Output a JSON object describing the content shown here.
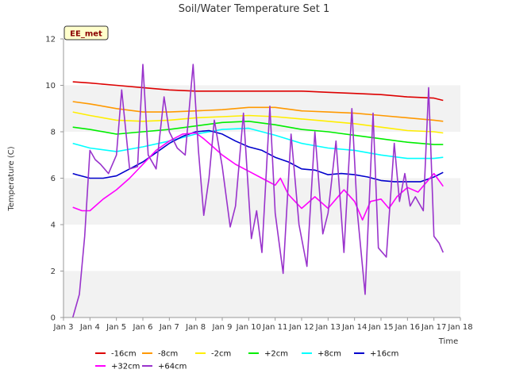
{
  "chart_data": {
    "type": "line",
    "title": "Soil/Water Temperature Set 1",
    "xlabel": "Time",
    "ylabel": "Temperature (C)",
    "station_badge": "EE_met",
    "x_ticks": [
      "Jan 3",
      "Jan 4",
      "Jan 5",
      "Jan 6",
      "Jan 7",
      "Jan 8",
      "Jan 9",
      "Jan 10",
      "Jan 11",
      "Jan 12",
      "Jan 13",
      "Jan 14",
      "Jan 15",
      "Jan 16",
      "Jan 17",
      "Jan 18"
    ],
    "y_ticks": [
      0,
      2,
      4,
      6,
      8,
      10,
      12
    ],
    "xlim": [
      "Jan 3",
      "Jan 18"
    ],
    "ylim": [
      0,
      12
    ],
    "grid": "horizontal alternating bands",
    "legend_position": "bottom",
    "series": [
      {
        "name": "-16cm",
        "color": "#dd0000",
        "x": [
          3.35,
          4,
          5,
          6,
          7,
          8,
          9,
          10,
          11,
          12,
          13,
          14,
          15,
          16,
          17.0,
          17.35
        ],
        "y": [
          10.15,
          10.1,
          10.0,
          9.9,
          9.8,
          9.75,
          9.75,
          9.75,
          9.75,
          9.75,
          9.7,
          9.65,
          9.6,
          9.5,
          9.45,
          9.35
        ]
      },
      {
        "name": "-8cm",
        "color": "#ff9900",
        "x": [
          3.35,
          4,
          5,
          6,
          7,
          8,
          9,
          10,
          11,
          12,
          13,
          14,
          15,
          16,
          17.0,
          17.35
        ],
        "y": [
          9.3,
          9.2,
          9.0,
          8.85,
          8.85,
          8.9,
          8.95,
          9.05,
          9.05,
          8.9,
          8.85,
          8.8,
          8.7,
          8.6,
          8.5,
          8.45
        ]
      },
      {
        "name": "-2cm",
        "color": "#ffee00",
        "x": [
          3.35,
          4,
          5,
          6,
          7,
          8,
          9,
          10,
          11,
          12,
          13,
          14,
          15,
          16,
          17.0,
          17.35
        ],
        "y": [
          8.85,
          8.7,
          8.5,
          8.45,
          8.5,
          8.6,
          8.65,
          8.7,
          8.65,
          8.55,
          8.45,
          8.35,
          8.2,
          8.05,
          8.0,
          7.95
        ]
      },
      {
        "name": "+2cm",
        "color": "#00ee00",
        "x": [
          3.35,
          4,
          5,
          6,
          7,
          8,
          9,
          10,
          11,
          12,
          13,
          14,
          15,
          16,
          17.0,
          17.35
        ],
        "y": [
          8.2,
          8.1,
          7.9,
          8.0,
          8.1,
          8.25,
          8.4,
          8.45,
          8.3,
          8.1,
          8.0,
          7.85,
          7.7,
          7.55,
          7.45,
          7.45
        ]
      },
      {
        "name": "+8cm",
        "color": "#00ffff",
        "x": [
          3.35,
          4,
          5,
          6,
          7,
          8,
          9,
          10,
          11,
          12,
          13,
          14,
          15,
          16,
          17.0,
          17.35
        ],
        "y": [
          7.5,
          7.3,
          7.15,
          7.35,
          7.6,
          7.9,
          8.1,
          8.15,
          7.85,
          7.5,
          7.3,
          7.2,
          7.0,
          6.85,
          6.85,
          6.9
        ]
      },
      {
        "name": "+16cm",
        "color": "#0000cc",
        "x": [
          3.35,
          3.5,
          4,
          4.5,
          5,
          5.5,
          6,
          6.5,
          7,
          7.5,
          8,
          8.5,
          9,
          9.5,
          10,
          10.5,
          11,
          11.5,
          12,
          12.5,
          13,
          13.5,
          14,
          14.5,
          15,
          15.5,
          16,
          16.5,
          17.0,
          17.35
        ],
        "y": [
          6.2,
          6.15,
          6.0,
          6.0,
          6.1,
          6.4,
          6.7,
          7.1,
          7.5,
          7.8,
          8.0,
          8.05,
          7.9,
          7.6,
          7.35,
          7.2,
          6.9,
          6.7,
          6.4,
          6.35,
          6.15,
          6.2,
          6.15,
          6.05,
          5.9,
          5.85,
          5.85,
          5.85,
          6.05,
          6.25
        ]
      },
      {
        "name": "+32cm",
        "color": "#ff00ff",
        "x": [
          3.35,
          3.7,
          4,
          4.5,
          5,
          5.5,
          6,
          6.5,
          7,
          7.5,
          8,
          8.3,
          8.6,
          9,
          9.5,
          10,
          10.5,
          11,
          11.2,
          11.5,
          12,
          12.5,
          13,
          13.3,
          13.6,
          14,
          14.3,
          14.6,
          15,
          15.3,
          15.6,
          16,
          16.4,
          16.7,
          17.0,
          17.35
        ],
        "y": [
          4.75,
          4.6,
          4.6,
          5.1,
          5.5,
          6.0,
          6.6,
          7.2,
          7.6,
          7.9,
          7.95,
          7.7,
          7.4,
          7.0,
          6.6,
          6.3,
          6.0,
          5.7,
          6.0,
          5.3,
          4.7,
          5.2,
          4.7,
          5.1,
          5.5,
          5.0,
          4.2,
          5.0,
          5.1,
          4.7,
          5.2,
          5.6,
          5.4,
          5.8,
          6.2,
          5.65
        ]
      },
      {
        "name": "+64cm",
        "color": "#9933cc",
        "x": [
          3.35,
          3.6,
          3.8,
          4,
          4.2,
          4.4,
          4.7,
          5,
          5.2,
          5.5,
          5.8,
          6,
          6.2,
          6.5,
          6.8,
          7,
          7.3,
          7.6,
          7.9,
          8.1,
          8.3,
          8.5,
          8.7,
          9.0,
          9.3,
          9.5,
          9.8,
          10.1,
          10.3,
          10.5,
          10.8,
          11.0,
          11.3,
          11.6,
          11.9,
          12.2,
          12.5,
          12.8,
          13.0,
          13.3,
          13.6,
          13.9,
          14.1,
          14.4,
          14.7,
          14.9,
          15.2,
          15.5,
          15.7,
          15.9,
          16.1,
          16.3,
          16.6,
          16.8,
          17.0,
          17.2,
          17.35
        ],
        "y": [
          0.0,
          1.0,
          3.5,
          7.2,
          6.8,
          6.6,
          6.2,
          7.0,
          9.8,
          6.4,
          6.5,
          10.9,
          7.0,
          6.4,
          9.5,
          8.0,
          7.3,
          7.0,
          10.9,
          7.2,
          4.4,
          6.0,
          8.5,
          6.5,
          3.9,
          4.8,
          8.8,
          3.4,
          4.6,
          2.8,
          9.1,
          4.5,
          1.9,
          7.9,
          4.0,
          2.2,
          8.0,
          3.6,
          4.5,
          7.6,
          2.8,
          9.0,
          4.6,
          1.0,
          8.8,
          3.0,
          2.6,
          7.5,
          5.0,
          6.2,
          4.8,
          5.2,
          4.6,
          9.9,
          3.5,
          3.2,
          2.8
        ]
      }
    ]
  }
}
